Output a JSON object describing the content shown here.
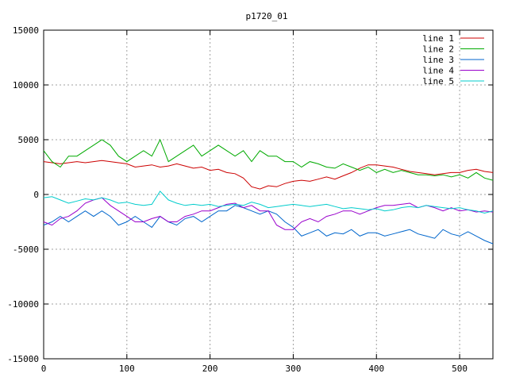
{
  "chart_data": {
    "type": "line",
    "title": "p1720_01",
    "xlabel": "",
    "ylabel": "",
    "xlim": [
      0,
      540
    ],
    "ylim": [
      -15000,
      15000
    ],
    "x_ticks": [
      0,
      100,
      200,
      300,
      400,
      500
    ],
    "y_ticks": [
      -15000,
      -10000,
      -5000,
      0,
      5000,
      10000,
      15000
    ],
    "grid": true,
    "legend_position": "top-right",
    "x": [
      0,
      10,
      20,
      30,
      40,
      50,
      60,
      70,
      80,
      90,
      100,
      110,
      120,
      130,
      140,
      150,
      160,
      170,
      180,
      190,
      200,
      210,
      220,
      230,
      240,
      250,
      260,
      270,
      280,
      290,
      300,
      310,
      320,
      330,
      340,
      350,
      360,
      370,
      380,
      390,
      400,
      410,
      420,
      430,
      440,
      450,
      460,
      470,
      480,
      490,
      500,
      510,
      520,
      530,
      540
    ],
    "series": [
      {
        "name": "line 1",
        "color": "#cc0000",
        "values": [
          3000,
          2900,
          2800,
          2900,
          3000,
          2900,
          3000,
          3100,
          3000,
          2900,
          2800,
          2500,
          2600,
          2700,
          2500,
          2600,
          2800,
          2600,
          2400,
          2500,
          2200,
          2300,
          2000,
          1900,
          1500,
          700,
          500,
          800,
          700,
          1000,
          1200,
          1300,
          1200,
          1400,
          1600,
          1400,
          1700,
          2000,
          2400,
          2700,
          2700,
          2600,
          2500,
          2300,
          2100,
          2000,
          1900,
          1800,
          1900,
          2000,
          2000,
          2200,
          2300,
          2100,
          2000
        ]
      },
      {
        "name": "line 2",
        "color": "#00aa00",
        "values": [
          4000,
          3000,
          2500,
          3500,
          3500,
          4000,
          4500,
          5000,
          4500,
          3500,
          3000,
          3500,
          4000,
          3500,
          5000,
          3000,
          3500,
          4000,
          4500,
          3500,
          4000,
          4500,
          4000,
          3500,
          4000,
          3000,
          4000,
          3500,
          3500,
          3000,
          3000,
          2500,
          3000,
          2800,
          2500,
          2400,
          2800,
          2500,
          2200,
          2500,
          2000,
          2300,
          2000,
          2200,
          2000,
          1800,
          1800,
          1700,
          1800,
          1600,
          1800,
          1500,
          2000,
          1500,
          1300
        ]
      },
      {
        "name": "line 3",
        "color": "#0066cc",
        "values": [
          -2800,
          -2500,
          -2000,
          -2500,
          -2000,
          -1500,
          -2000,
          -1500,
          -2000,
          -2800,
          -2500,
          -2000,
          -2500,
          -3000,
          -2000,
          -2500,
          -2800,
          -2200,
          -2000,
          -2500,
          -2000,
          -1500,
          -1500,
          -1000,
          -1200,
          -1500,
          -1800,
          -1500,
          -1800,
          -2500,
          -3000,
          -3800,
          -3500,
          -3200,
          -3800,
          -3500,
          -3600,
          -3200,
          -3800,
          -3500,
          -3500,
          -3800,
          -3600,
          -3400,
          -3200,
          -3600,
          -3800,
          -4000,
          -3200,
          -3600,
          -3800,
          -3400,
          -3800,
          -4200,
          -4500
        ]
      },
      {
        "name": "line 4",
        "color": "#9900cc",
        "values": [
          -2500,
          -2800,
          -2200,
          -2000,
          -1500,
          -800,
          -500,
          -300,
          -1000,
          -1500,
          -2000,
          -2500,
          -2500,
          -2200,
          -2000,
          -2500,
          -2500,
          -2000,
          -1800,
          -1500,
          -1500,
          -1200,
          -900,
          -800,
          -1200,
          -1000,
          -1500,
          -1500,
          -2800,
          -3200,
          -3200,
          -2500,
          -2200,
          -2500,
          -2000,
          -1800,
          -1500,
          -1500,
          -1800,
          -1500,
          -1200,
          -1000,
          -1000,
          -900,
          -800,
          -1200,
          -1000,
          -1200,
          -1500,
          -1200,
          -1500,
          -1400,
          -1600,
          -1500,
          -1600
        ]
      },
      {
        "name": "line 5",
        "color": "#00cccc",
        "values": [
          -300,
          -200,
          -500,
          -800,
          -600,
          -400,
          -500,
          -300,
          -500,
          -800,
          -700,
          -900,
          -1000,
          -900,
          300,
          -500,
          -800,
          -1000,
          -900,
          -1000,
          -900,
          -1100,
          -1000,
          -900,
          -1000,
          -700,
          -900,
          -1200,
          -1100,
          -1000,
          -900,
          -1000,
          -1100,
          -1000,
          -900,
          -1100,
          -1300,
          -1200,
          -1300,
          -1400,
          -1300,
          -1500,
          -1400,
          -1200,
          -1100,
          -1200,
          -1000,
          -1100,
          -1200,
          -1300,
          -1200,
          -1400,
          -1500,
          -1700,
          -1500
        ]
      }
    ]
  }
}
